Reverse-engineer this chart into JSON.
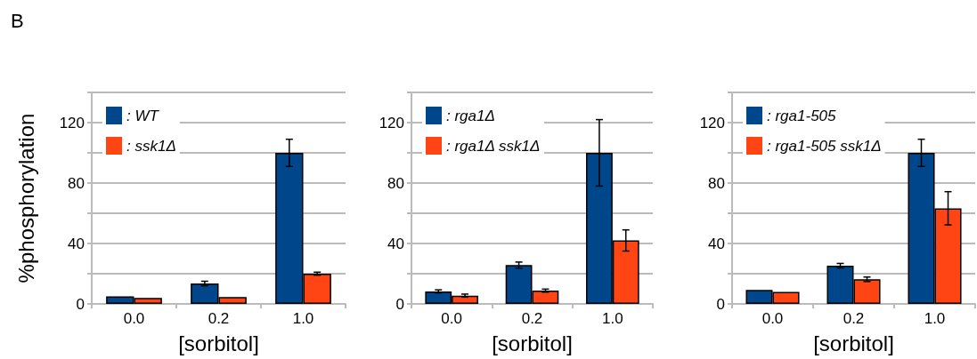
{
  "chart_data": [
    {
      "type": "bar",
      "annotations": [
        "B"
      ],
      "ylabel": "%phosphorylation",
      "xlabel": "[sorbitol]",
      "categories": [
        "0.0",
        "0.2",
        "1.0"
      ],
      "series": [
        {
          "name": ": WT",
          "color": "#00468b",
          "values": [
            5,
            13.5,
            100
          ],
          "errors": [
            null,
            1.5,
            9
          ]
        },
        {
          "name": ": ssk1Δ",
          "color": "#ff4513",
          "values": [
            4,
            4.5,
            20
          ],
          "errors": [
            null,
            null,
            1
          ]
        }
      ],
      "ylim": [
        0,
        140
      ],
      "yticks": [
        0,
        {
          "value": 20,
          "label": null
        },
        40,
        {
          "value": 60,
          "label": null
        },
        80,
        {
          "value": 100,
          "label": null
        },
        120,
        {
          "value": 140,
          "label": null
        }
      ],
      "grid": "y",
      "legend": "top left"
    },
    {
      "type": "bar",
      "xlabel": "[sorbitol]",
      "categories": [
        "0.0",
        "0.2",
        "1.0"
      ],
      "series": [
        {
          "name": ": rga1Δ",
          "color": "#00468b",
          "values": [
            8.3,
            25.7,
            100
          ],
          "errors": [
            1,
            2,
            22
          ]
        },
        {
          "name": ": rga1Δ ssk1Δ",
          "color": "#ff4513",
          "values": [
            5.5,
            8.8,
            42
          ],
          "errors": [
            1,
            1,
            7
          ]
        }
      ],
      "ylim": [
        0,
        140
      ],
      "yticks": [
        0,
        {
          "value": 20,
          "label": null
        },
        40,
        {
          "value": 60,
          "label": null
        },
        80,
        {
          "value": 100,
          "label": null
        },
        120,
        {
          "value": 140,
          "label": null
        }
      ],
      "grid": "y",
      "legend": "top left"
    },
    {
      "type": "bar",
      "xlabel": "[sorbitol]",
      "categories": [
        "0.0",
        "0.2",
        "1.0"
      ],
      "series": [
        {
          "name": ": rga1-505",
          "color": "#00468b",
          "values": [
            9.2,
            25.3,
            100
          ],
          "errors": [
            null,
            1.5,
            9
          ]
        },
        {
          "name": ": rga1-505 ssk1Δ",
          "color": "#ff4513",
          "values": [
            8,
            16.3,
            63.3
          ],
          "errors": [
            null,
            1.5,
            11
          ]
        }
      ],
      "ylim": [
        0,
        140
      ],
      "yticks": [
        0,
        {
          "value": 20,
          "label": null
        },
        40,
        {
          "value": 60,
          "label": null
        },
        80,
        {
          "value": 100,
          "label": null
        },
        120,
        {
          "value": 140,
          "label": null
        }
      ],
      "grid": "y",
      "legend": "top left"
    }
  ]
}
